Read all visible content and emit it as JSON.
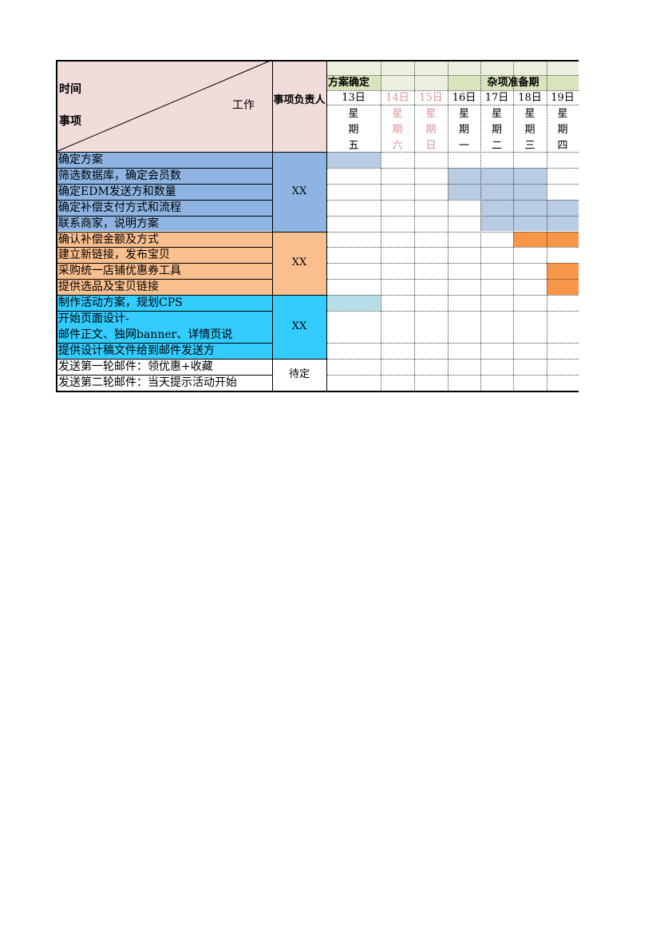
{
  "header": {
    "corner_time": "时间",
    "corner_work": "工作",
    "corner_item": "事项",
    "owner_header": "事项负责人"
  },
  "phases": [
    {
      "label": "方案确定",
      "start": 0,
      "span": 1
    },
    {
      "label": "杂项准备期",
      "start": 3,
      "span": 4
    }
  ],
  "days": [
    {
      "date": "13日",
      "weekday": "星期五",
      "weekend": false
    },
    {
      "date": "14日",
      "weekday": "星期六",
      "weekend": true
    },
    {
      "date": "15日",
      "weekday": "星期日",
      "weekend": true
    },
    {
      "date": "16日",
      "weekday": "星期一",
      "weekend": false
    },
    {
      "date": "17日",
      "weekday": "星期二",
      "weekend": false
    },
    {
      "date": "18日",
      "weekday": "星期三",
      "weekend": false
    },
    {
      "date": "19日",
      "weekday": "星期四",
      "weekend": false
    }
  ],
  "groups": [
    {
      "owner": "XX",
      "color": "#8db4e2",
      "tasks": [
        {
          "text": "确定方案",
          "lines": 1,
          "bars": [
            {
              "start": 0,
              "end": 0,
              "color": "#b8cce4"
            }
          ]
        },
        {
          "text": "筛选数据库，确定会员数",
          "lines": 1,
          "bars": [
            {
              "start": 3,
              "end": 5,
              "color": "#b8cce4"
            }
          ]
        },
        {
          "text": "确定EDM发送方和数量",
          "lines": 1,
          "bars": [
            {
              "start": 3,
              "end": 5,
              "color": "#b8cce4"
            }
          ]
        },
        {
          "text": "确定补偿支付方式和流程",
          "lines": 1,
          "bars": [
            {
              "start": 4,
              "end": 6,
              "color": "#b8cce4"
            }
          ]
        },
        {
          "text": "联系商家，说明方案",
          "lines": 1,
          "bars": [
            {
              "start": 4,
              "end": 6,
              "color": "#b8cce4"
            }
          ]
        }
      ]
    },
    {
      "owner": "XX",
      "color": "#fabf8f",
      "tasks": [
        {
          "text": "确认补偿金额及方式",
          "lines": 1,
          "bars": [
            {
              "start": 5,
              "end": 6,
              "color": "#f79646"
            }
          ]
        },
        {
          "text": "建立新链接，发布宝贝",
          "lines": 1,
          "bars": []
        },
        {
          "text": "采购统一店铺优惠券工具",
          "lines": 1,
          "bars": [
            {
              "start": 6,
              "end": 6,
              "color": "#f79646"
            }
          ]
        },
        {
          "text": "提供选品及宝贝链接",
          "lines": 1,
          "bars": [
            {
              "start": 6,
              "end": 6,
              "color": "#f79646"
            }
          ]
        }
      ]
    },
    {
      "owner": "XX",
      "color": "#33ccff",
      "tasks": [
        {
          "text": "制作活动方案，规划CPS",
          "lines": 1,
          "bars": [
            {
              "start": 0,
              "end": 0,
              "color": "#b7dee8"
            }
          ]
        },
        {
          "text": "开始页面设计-",
          "text2": "邮件正文、独网banner、详情页说",
          "lines": 2,
          "bars": []
        },
        {
          "text": "提供设计稿文件给到邮件发送方",
          "lines": 1,
          "bars": []
        }
      ]
    },
    {
      "owner": "待定",
      "color": "#ffffff",
      "tasks": [
        {
          "text": "发送第一轮邮件：领优惠+收藏",
          "lines": 1,
          "bars": []
        },
        {
          "text": "发送第二轮邮件：当天提示活动开始",
          "lines": 1,
          "bars": []
        }
      ]
    }
  ],
  "colors": {
    "header_pink": "#f2dcdb",
    "header_green": "#ebf1de",
    "phase_green": "#d8e4bc",
    "weekend_text": "#da9694",
    "border": "#000000",
    "dotted": "#404040"
  }
}
